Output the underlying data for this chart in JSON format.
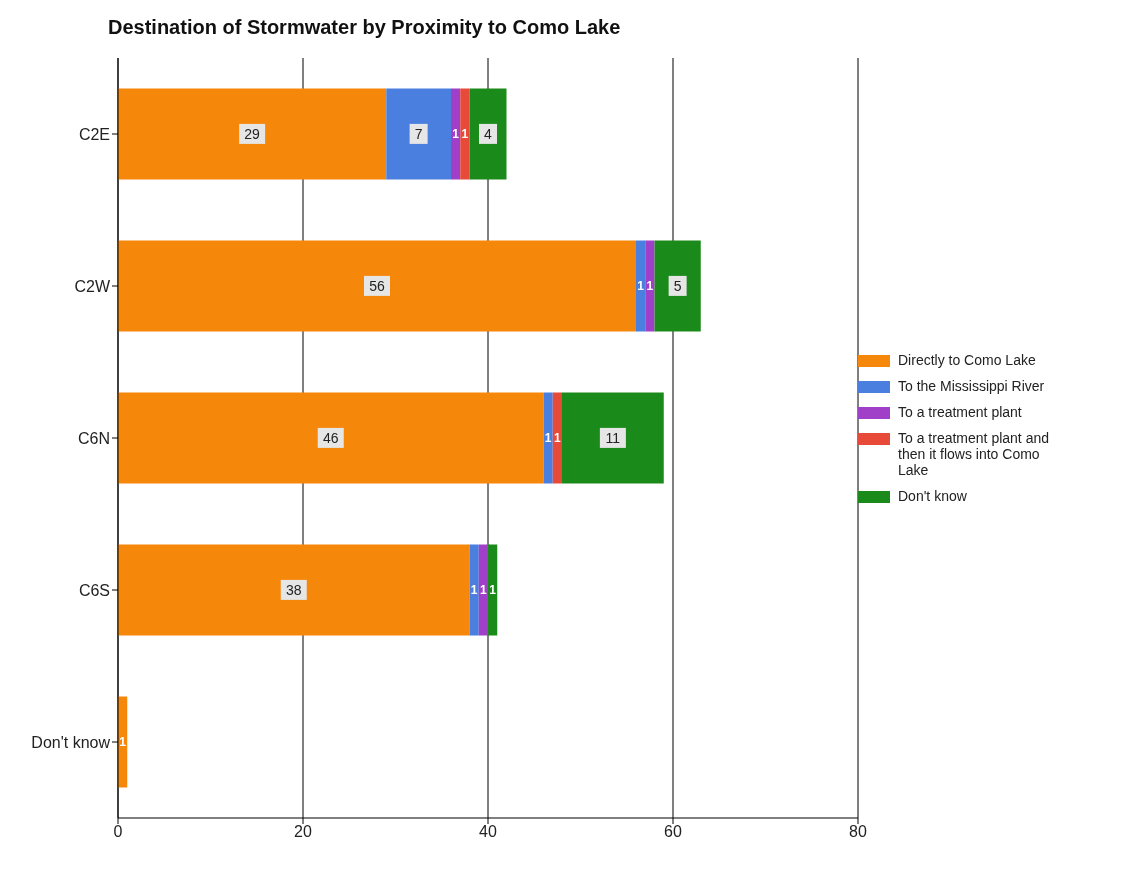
{
  "chart_data": {
    "type": "bar",
    "orientation": "horizontal",
    "stacked": true,
    "title": "Destination of Stormwater by Proximity to Como Lake",
    "categories": [
      "C2E",
      "C2W",
      "C6N",
      "C6S",
      "Don't know"
    ],
    "series": [
      {
        "name": "Directly to Como Lake",
        "color": "#f5870a",
        "values": [
          29,
          56,
          46,
          38,
          1
        ]
      },
      {
        "name": "To the Mississippi River",
        "color": "#4a7fe0",
        "values": [
          7,
          1,
          1,
          1,
          null
        ]
      },
      {
        "name": "To a treatment plant",
        "color": "#a040c8",
        "values": [
          1,
          1,
          null,
          1,
          null
        ]
      },
      {
        "name": "To a treatment plant and then it flows into Como Lake",
        "color": "#e84a3a",
        "values": [
          1,
          null,
          1,
          null,
          null
        ]
      },
      {
        "name": "Don't know",
        "color": "#1a8a1a",
        "values": [
          4,
          5,
          11,
          1,
          null
        ]
      }
    ],
    "xlim": [
      0,
      80
    ],
    "xticks": [
      0,
      20,
      40,
      60,
      80
    ],
    "grid": "x",
    "legend": "right",
    "data_labels": true
  }
}
